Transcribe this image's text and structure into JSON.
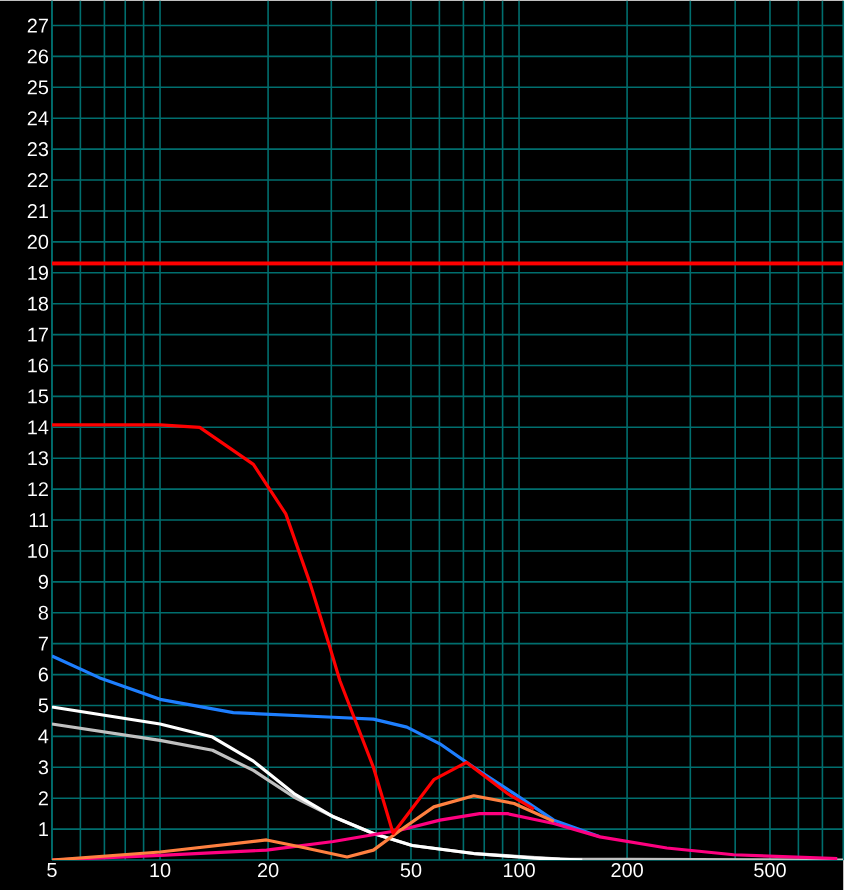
{
  "chart_data": {
    "type": "line",
    "log": "x",
    "grid": true,
    "xlim": [
      5,
      800
    ],
    "ylim": [
      0,
      27.8
    ],
    "xticks": [
      5,
      {
        "value": 6,
        "label": null
      },
      {
        "value": 7,
        "label": null
      },
      {
        "value": 8,
        "label": null
      },
      {
        "value": 9,
        "label": null
      },
      10,
      20,
      {
        "value": 30,
        "label": null
      },
      {
        "value": 40,
        "label": null
      },
      50,
      {
        "value": 60,
        "label": null
      },
      {
        "value": 70,
        "label": null
      },
      {
        "value": 80,
        "label": null
      },
      {
        "value": 90,
        "label": null
      },
      100,
      200,
      {
        "value": 300,
        "label": null
      },
      {
        "value": 400,
        "label": null
      },
      500,
      {
        "value": 600,
        "label": null
      },
      {
        "value": 700,
        "label": null
      },
      {
        "value": 800,
        "label": null
      }
    ],
    "yticks": [
      1,
      2,
      3,
      4,
      5,
      6,
      7,
      8,
      9,
      10,
      11,
      12,
      13,
      14,
      15,
      16,
      17,
      18,
      19,
      20,
      21,
      22,
      23,
      24,
      25,
      26,
      27
    ],
    "ref_lines": [
      {
        "axis": "y",
        "value": 19.3,
        "color": "#ff0000"
      }
    ],
    "series": [
      {
        "color": "#c0c0c0",
        "x": [
          5,
          10,
          14,
          18.2,
          23.6,
          30.4,
          39.3,
          50.4,
          74.8,
          130,
          800
        ],
        "values": [
          4.4,
          3.87,
          3.55,
          2.9,
          2.04,
          1.4,
          0.86,
          0.47,
          0.21,
          0.03,
          0
        ]
      },
      {
        "color": "#ffffff",
        "x": [
          5,
          10,
          14,
          18.2,
          23.6,
          30.4,
          39.3,
          50.4,
          74.8,
          110,
          150
        ],
        "values": [
          4.95,
          4.4,
          3.98,
          3.2,
          2.15,
          1.4,
          0.86,
          0.47,
          0.21,
          0.06,
          0
        ]
      },
      {
        "color": "#1e7fff",
        "x": [
          5,
          6.77,
          10,
          16,
          30.4,
          39.3,
          48.7,
          60.2,
          74.8,
          96.9,
          125,
          168
        ],
        "values": [
          6.6,
          5.9,
          5.2,
          4.77,
          4.62,
          4.56,
          4.3,
          3.76,
          3.0,
          2.15,
          1.29,
          0.75
        ]
      },
      {
        "color": "#ff0080",
        "x": [
          5,
          10,
          19.8,
          30.4,
          46.8,
          60.2,
          77.7,
          92.9,
          125,
          168,
          258,
          396,
          770
        ],
        "values": [
          0,
          0.15,
          0.32,
          0.6,
          0.97,
          1.29,
          1.5,
          1.5,
          1.18,
          0.75,
          0.39,
          0.17,
          0.05
        ]
      },
      {
        "color": "#ff8040",
        "x": [
          5,
          10,
          19.8,
          24.5,
          33.2,
          39.3,
          46.8,
          57.9,
          74.8,
          96.9,
          125
        ],
        "values": [
          0,
          0.26,
          0.65,
          0.43,
          0.1,
          0.32,
          0.97,
          1.72,
          2.08,
          1.83,
          1.25
        ]
      },
      {
        "color": "#ff0000",
        "x": [
          5,
          10,
          12.9,
          18.2,
          22.4,
          26.1,
          29.7,
          31.7,
          39.3,
          44.6,
          57.9,
          71.4,
          92.9,
          110
        ],
        "values": [
          14.08,
          14.08,
          14,
          12.8,
          11.2,
          9.0,
          6.9,
          5.8,
          3.0,
          0.86,
          2.6,
          3.16,
          2.15,
          1.65
        ]
      }
    ]
  }
}
